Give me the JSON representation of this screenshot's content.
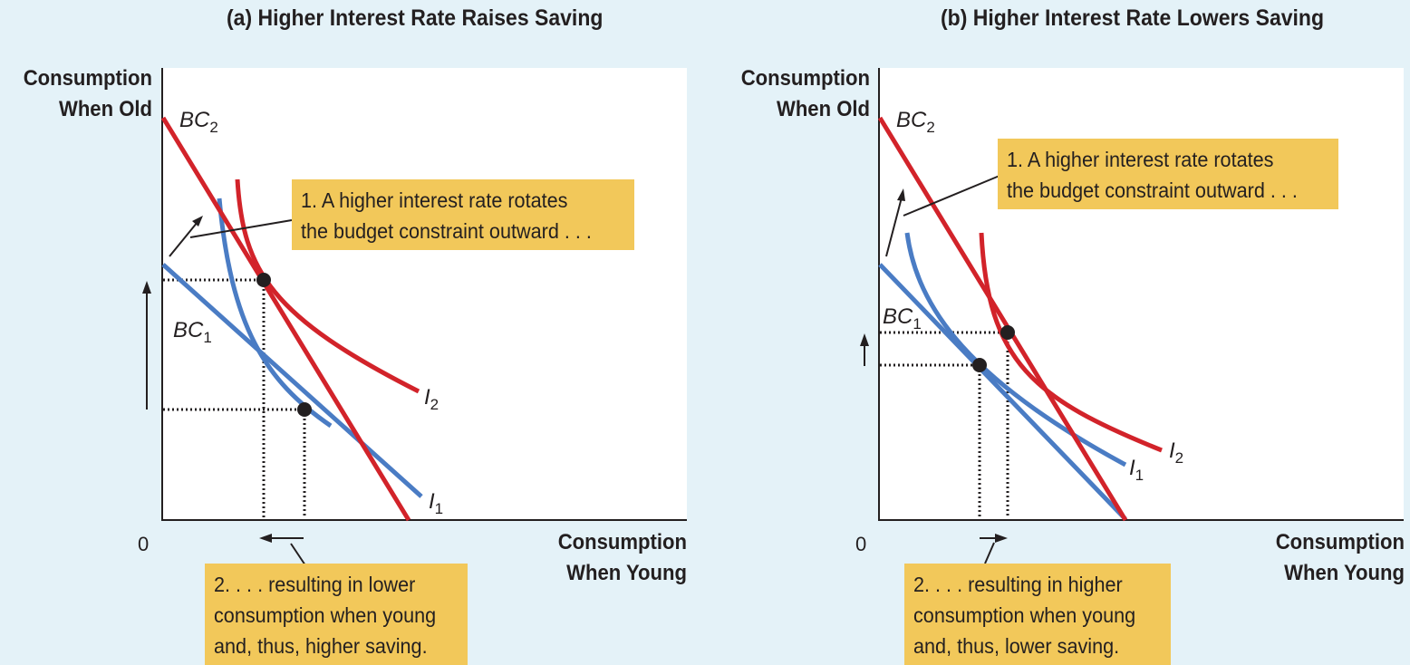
{
  "colors": {
    "background": "#e4f2f8",
    "red_curve": "#d2232a",
    "blue_curve": "#4a7cc4",
    "note_fill": "#f2c85a",
    "axis": "#231f20"
  },
  "panel_a": {
    "title": "(a) Higher Interest Rate Raises Saving",
    "y_axis": {
      "line1": "Consumption",
      "line2": "When Old"
    },
    "x_axis": {
      "line1": "Consumption",
      "line2": "When Young"
    },
    "origin": "0",
    "bc2": {
      "main": "BC",
      "sub": "2"
    },
    "bc1": {
      "main": "BC",
      "sub": "1"
    },
    "i2": {
      "main": "I",
      "sub": "2"
    },
    "i1": {
      "main": "I",
      "sub": "1"
    },
    "note1": {
      "line1": "1. A higher interest rate rotates",
      "line2": "the budget constraint outward . . ."
    },
    "note2": {
      "line1": "2. . . . resulting in lower",
      "line2": "consumption when young",
      "line3": "and, thus, higher saving."
    }
  },
  "panel_b": {
    "title": "(b) Higher Interest Rate Lowers Saving",
    "y_axis": {
      "line1": "Consumption",
      "line2": "When Old"
    },
    "x_axis": {
      "line1": "Consumption",
      "line2": "When Young"
    },
    "origin": "0",
    "bc2": {
      "main": "BC",
      "sub": "2"
    },
    "bc1": {
      "main": "BC",
      "sub": "1"
    },
    "i2": {
      "main": "I",
      "sub": "2"
    },
    "i1": {
      "main": "I",
      "sub": "1"
    },
    "note1": {
      "line1": "1. A higher interest rate rotates",
      "line2": "the budget constraint outward . . ."
    },
    "note2": {
      "line1": "2. . . . resulting in higher",
      "line2": "consumption when young",
      "line3": "and, thus, lower saving."
    }
  }
}
